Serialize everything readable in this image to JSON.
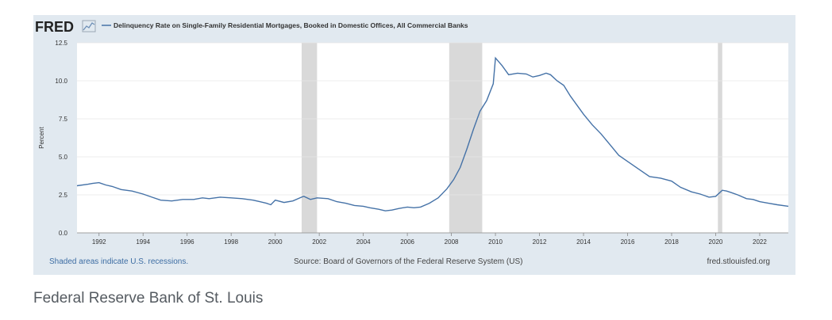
{
  "logo": {
    "text": "FRED"
  },
  "chart_data": {
    "type": "line",
    "title": "Delinquency Rate on Single-Family Residential Mortgages, Booked in Domestic Offices, All Commercial Banks",
    "ylabel": "Percent",
    "xlabel": "",
    "xlim": [
      1991,
      2023.3
    ],
    "ylim": [
      0,
      12.5
    ],
    "x_ticks": [
      "1992",
      "1994",
      "1996",
      "1998",
      "2000",
      "2002",
      "2004",
      "2006",
      "2008",
      "2010",
      "2012",
      "2014",
      "2016",
      "2018",
      "2020",
      "2022"
    ],
    "y_ticks": [
      "0.0",
      "2.5",
      "5.0",
      "7.5",
      "10.0",
      "12.5"
    ],
    "grid": true,
    "line_color": "#4572a7",
    "recession_color": "#d9d9d9",
    "recessions": [
      [
        2001.2,
        2001.9
      ],
      [
        2007.9,
        2009.4
      ],
      [
        2020.1,
        2020.3
      ]
    ],
    "series": [
      {
        "name": "Delinquency Rate on Single-Family Residential Mortgages, Booked in Domestic Offices, All Commercial Banks",
        "x": [
          1991.0,
          1991.5,
          1991.7,
          1992.0,
          1992.3,
          1992.6,
          1993.0,
          1993.5,
          1994.0,
          1994.4,
          1994.8,
          1995.3,
          1995.8,
          1996.3,
          1996.7,
          1997.0,
          1997.5,
          1998.0,
          1998.5,
          1999.0,
          1999.3,
          1999.6,
          1999.8,
          2000.0,
          2000.4,
          2000.8,
          2001.2,
          2001.3,
          2001.6,
          2001.9,
          2002.4,
          2002.8,
          2003.2,
          2003.6,
          2004.0,
          2004.3,
          2004.7,
          2005.0,
          2005.3,
          2005.6,
          2006.0,
          2006.3,
          2006.6,
          2007.0,
          2007.4,
          2007.8,
          2008.1,
          2008.4,
          2008.7,
          2009.0,
          2009.3,
          2009.6,
          2009.9,
          2010.0,
          2010.3,
          2010.6,
          2011.0,
          2011.4,
          2011.7,
          2012.0,
          2012.3,
          2012.5,
          2012.8,
          2013.1,
          2013.4,
          2013.7,
          2014.0,
          2014.4,
          2014.8,
          2015.2,
          2015.6,
          2016.0,
          2016.5,
          2017.0,
          2017.5,
          2018.0,
          2018.4,
          2018.9,
          2019.3,
          2019.7,
          2020.0,
          2020.3,
          2020.5,
          2020.7,
          2021.0,
          2021.4,
          2021.7,
          2022.0,
          2022.4,
          2022.8,
          2023.3
        ],
        "values": [
          3.1,
          3.2,
          3.25,
          3.3,
          3.15,
          3.05,
          2.85,
          2.75,
          2.55,
          2.35,
          2.15,
          2.1,
          2.2,
          2.2,
          2.3,
          2.25,
          2.35,
          2.3,
          2.25,
          2.15,
          2.05,
          1.95,
          1.85,
          2.15,
          2.0,
          2.1,
          2.35,
          2.4,
          2.2,
          2.3,
          2.25,
          2.05,
          1.95,
          1.8,
          1.75,
          1.65,
          1.55,
          1.45,
          1.5,
          1.6,
          1.7,
          1.65,
          1.7,
          1.95,
          2.3,
          2.9,
          3.5,
          4.3,
          5.5,
          6.8,
          8.0,
          8.7,
          9.8,
          11.5,
          11.0,
          10.4,
          10.5,
          10.45,
          10.25,
          10.35,
          10.5,
          10.4,
          10.0,
          9.7,
          9.0,
          8.4,
          7.8,
          7.1,
          6.5,
          5.8,
          5.1,
          4.7,
          4.2,
          3.7,
          3.6,
          3.4,
          3.0,
          2.7,
          2.55,
          2.35,
          2.4,
          2.8,
          2.75,
          2.65,
          2.5,
          2.25,
          2.2,
          2.05,
          1.95,
          1.85,
          1.75
        ]
      }
    ]
  },
  "footer": {
    "left": "Shaded areas indicate U.S. recessions.",
    "center": "Source: Board of Governors of the Federal Reserve System (US)",
    "right": "fred.stlouisfed.org"
  },
  "caption": "Federal Reserve Bank of St. Louis"
}
